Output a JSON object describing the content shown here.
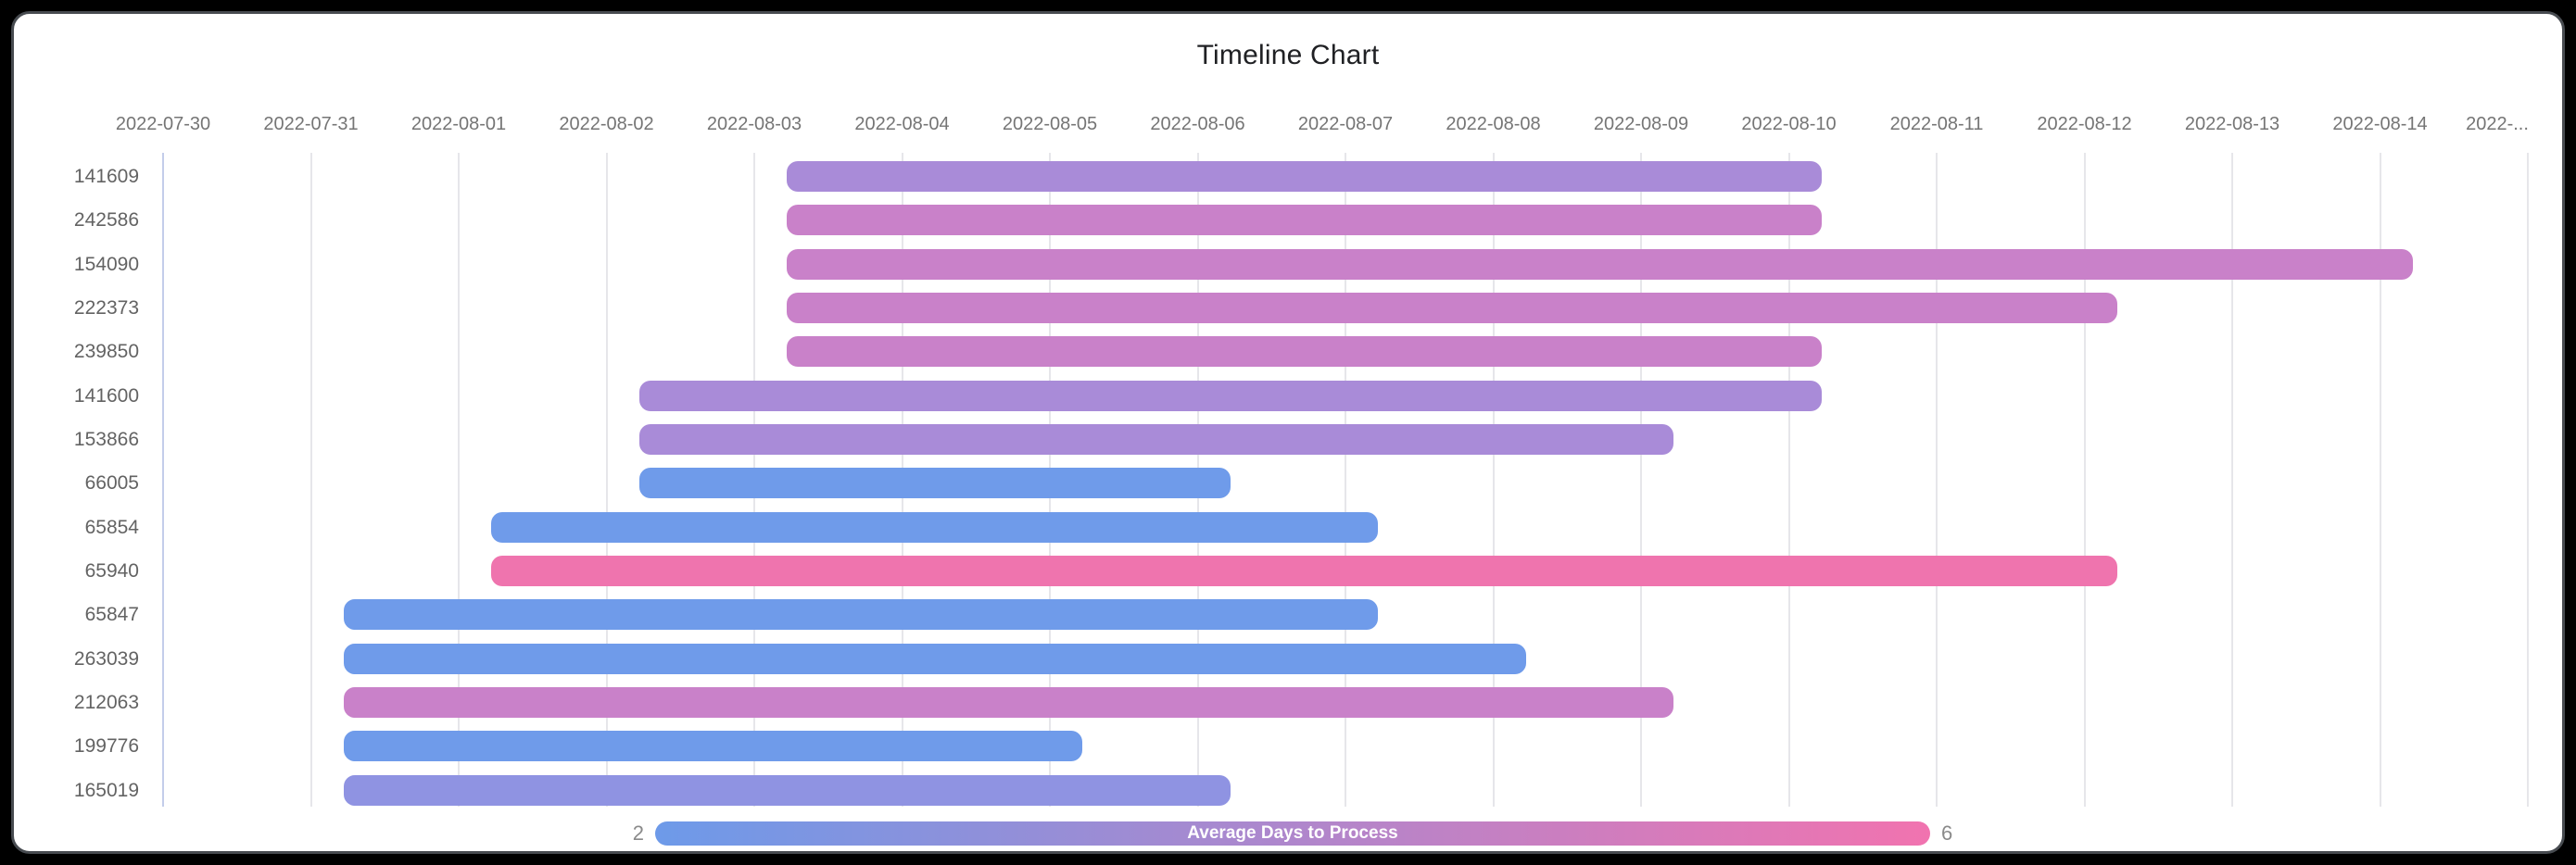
{
  "title": "Timeline Chart",
  "chart_data": {
    "type": "timeline",
    "x_axis": {
      "start_date": "2022-07-30",
      "tick_labels": [
        "2022-07-30",
        "2022-07-31",
        "2022-08-01",
        "2022-08-02",
        "2022-08-03",
        "2022-08-04",
        "2022-08-05",
        "2022-08-06",
        "2022-08-07",
        "2022-08-08",
        "2022-08-09",
        "2022-08-10",
        "2022-08-11",
        "2022-08-12",
        "2022-08-13",
        "2022-08-14",
        "2022-..."
      ]
    },
    "tasks": [
      {
        "id": "141609",
        "start": "2022-08-03",
        "end": "2022-08-10",
        "duration_days": 7,
        "avg_days_to_process": 4,
        "color": "#A98BD8"
      },
      {
        "id": "242586",
        "start": "2022-08-03",
        "end": "2022-08-10",
        "duration_days": 7,
        "avg_days_to_process": 5,
        "color": "#C981C9"
      },
      {
        "id": "154090",
        "start": "2022-08-03",
        "end": "2022-08-14",
        "duration_days": 11,
        "avg_days_to_process": 5,
        "color": "#C981C9"
      },
      {
        "id": "222373",
        "start": "2022-08-03",
        "end": "2022-08-12",
        "duration_days": 9,
        "avg_days_to_process": 5,
        "color": "#C981C9"
      },
      {
        "id": "239850",
        "start": "2022-08-03",
        "end": "2022-08-10",
        "duration_days": 7,
        "avg_days_to_process": 5,
        "color": "#C981C9"
      },
      {
        "id": "141600",
        "start": "2022-08-02",
        "end": "2022-08-10",
        "duration_days": 8,
        "avg_days_to_process": 4,
        "color": "#A98BD8"
      },
      {
        "id": "153866",
        "start": "2022-08-02",
        "end": "2022-08-09",
        "duration_days": 7,
        "avg_days_to_process": 4,
        "color": "#A98BD8"
      },
      {
        "id": "66005",
        "start": "2022-08-02",
        "end": "2022-08-06",
        "duration_days": 4,
        "avg_days_to_process": 2,
        "color": "#6F9BEA"
      },
      {
        "id": "65854",
        "start": "2022-08-01",
        "end": "2022-08-07",
        "duration_days": 6,
        "avg_days_to_process": 2,
        "color": "#6F9BEA"
      },
      {
        "id": "65940",
        "start": "2022-08-01",
        "end": "2022-08-12",
        "duration_days": 11,
        "avg_days_to_process": 6,
        "color": "#EF74AE"
      },
      {
        "id": "65847",
        "start": "2022-07-31",
        "end": "2022-08-07",
        "duration_days": 7,
        "avg_days_to_process": 2,
        "color": "#6F9BEA"
      },
      {
        "id": "263039",
        "start": "2022-07-31",
        "end": "2022-08-08",
        "duration_days": 8,
        "avg_days_to_process": 2,
        "color": "#6F9BEA"
      },
      {
        "id": "212063",
        "start": "2022-07-31",
        "end": "2022-08-09",
        "duration_days": 9,
        "avg_days_to_process": 5,
        "color": "#C981C9"
      },
      {
        "id": "199776",
        "start": "2022-07-31",
        "end": "2022-08-05",
        "duration_days": 5,
        "avg_days_to_process": 2,
        "color": "#6F9BEA"
      },
      {
        "id": "165019",
        "start": "2022-07-31",
        "end": "2022-08-06",
        "duration_days": 6,
        "avg_days_to_process": 3,
        "color": "#8F93E2"
      }
    ],
    "legend": {
      "label": "Average Days to Process",
      "min": 2,
      "max": 6,
      "min_color": "#6D9AE9",
      "max_color": "#F173AF"
    },
    "layout_hints": {
      "grid": true,
      "legend_position": "bottom",
      "bar_color_encodes": "avg_days_to_process"
    }
  }
}
